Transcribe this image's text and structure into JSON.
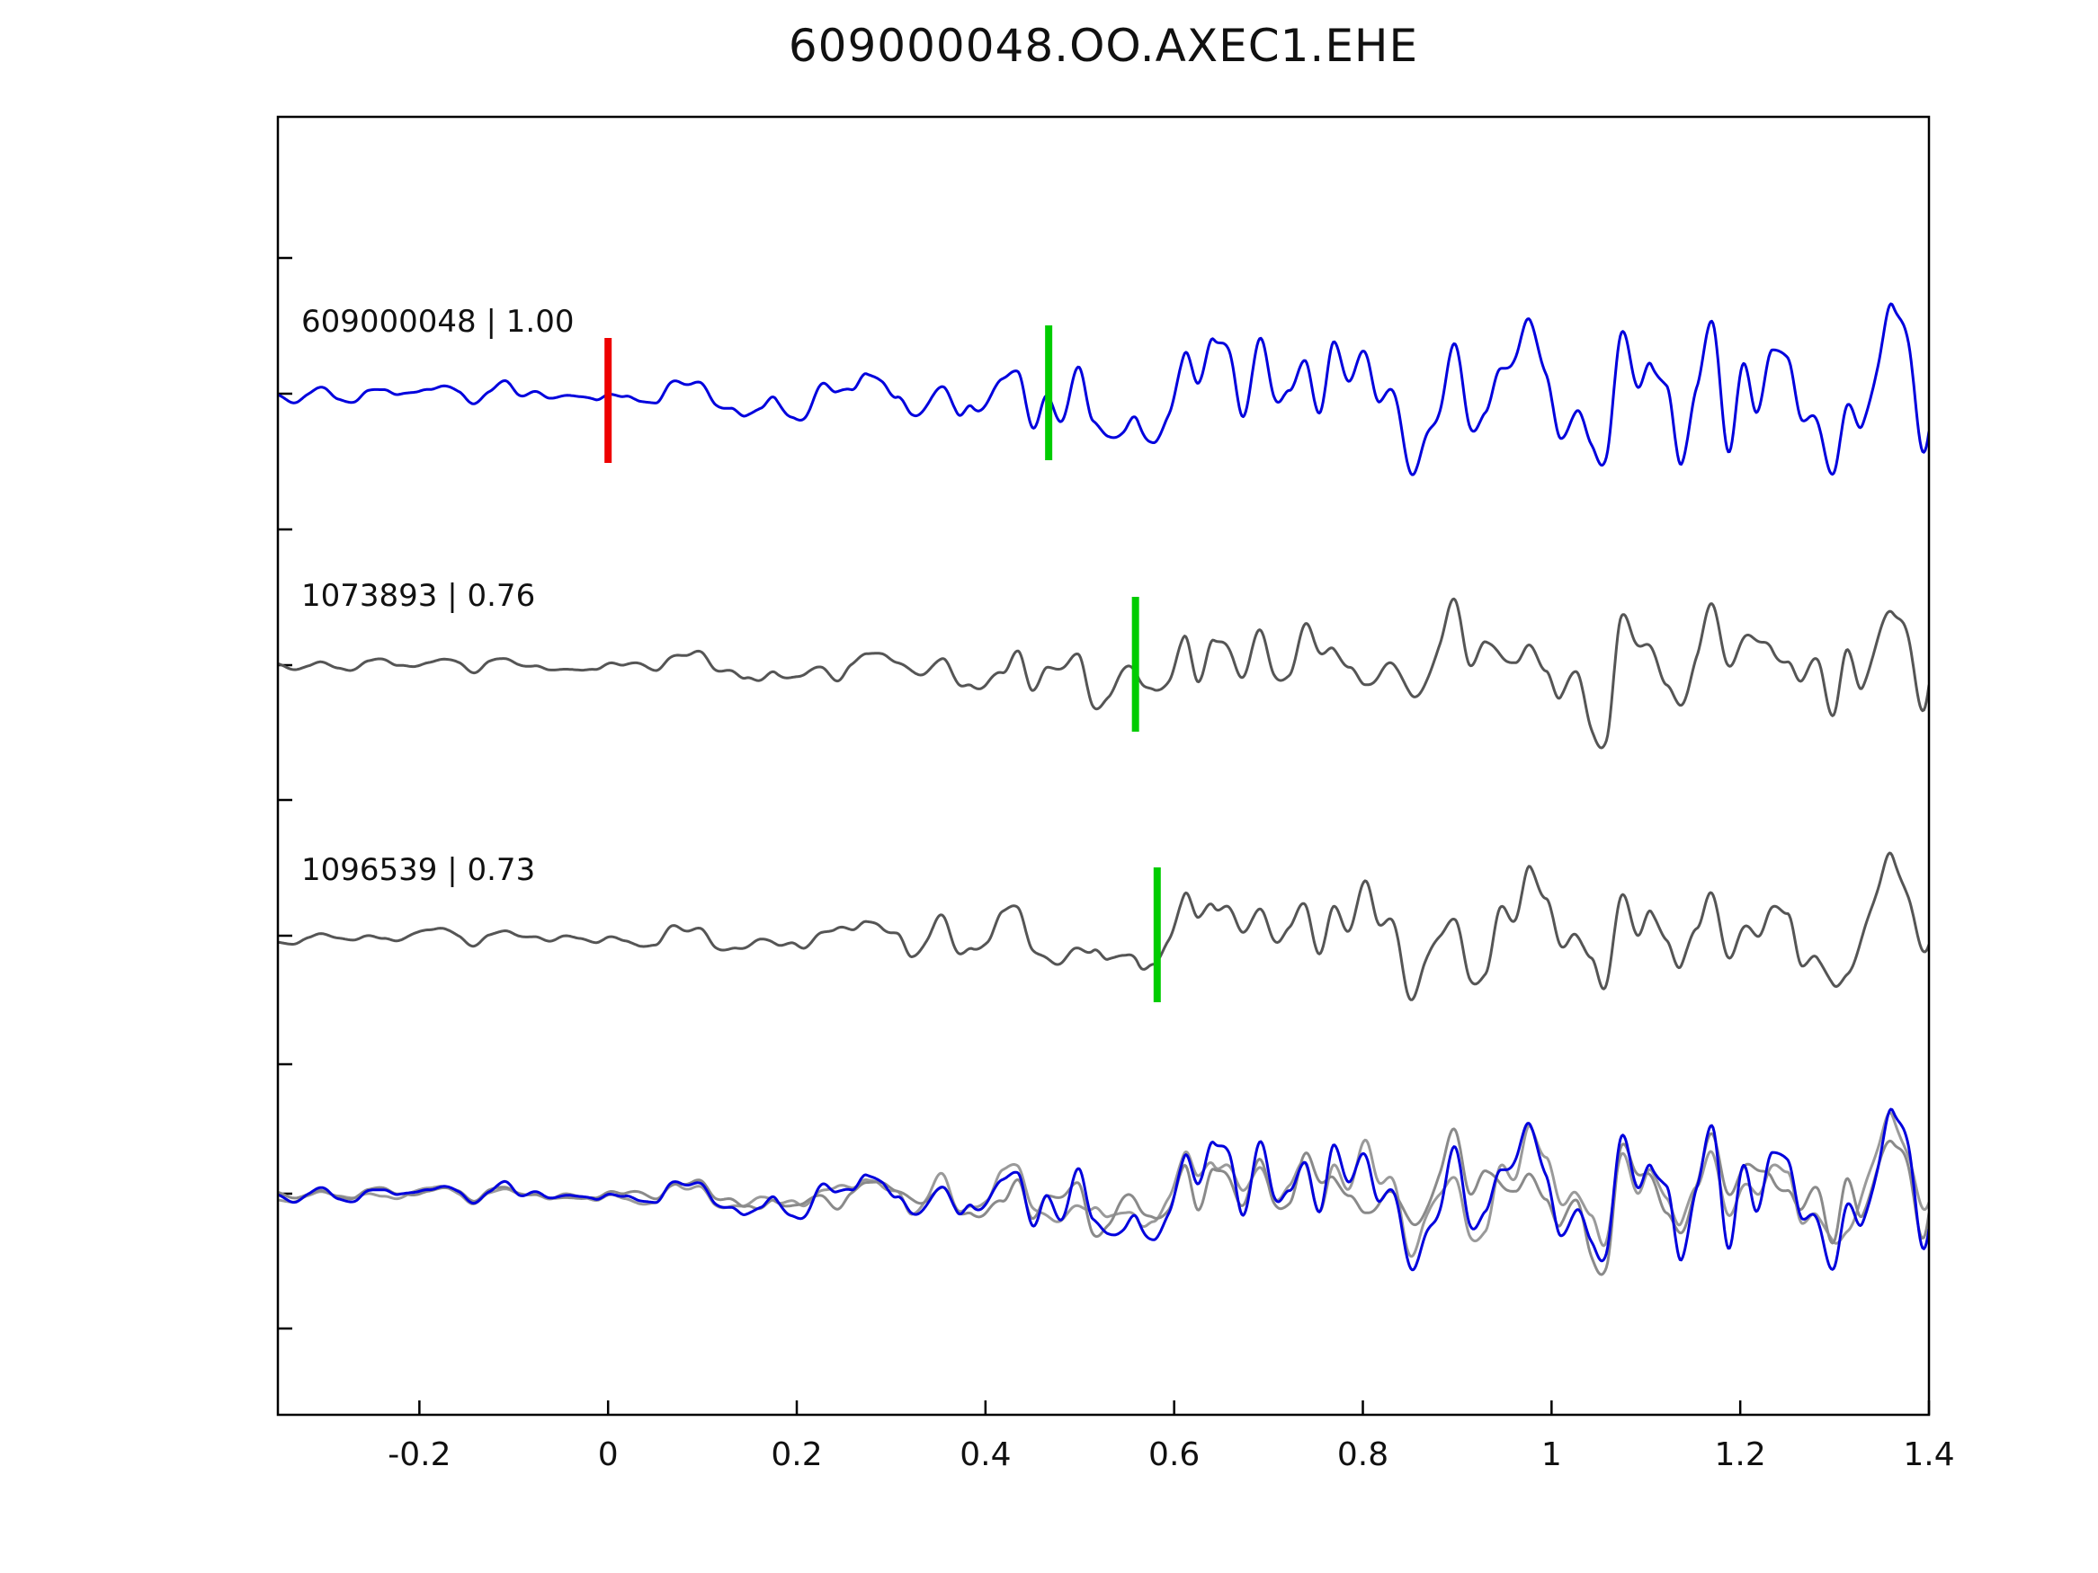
{
  "chart_data": {
    "type": "line",
    "variant": "seismic-waveform-correlation",
    "title": "609000048.OO.AXEC1.EHE",
    "xlabel": "",
    "ylabel": "",
    "xlim": [
      -0.35,
      1.4
    ],
    "grid": false,
    "legend_position": "none",
    "xticks": [
      -0.2,
      0,
      0.2,
      0.4,
      0.6,
      0.8,
      1.0,
      1.2,
      1.4
    ],
    "xtick_labels": [
      "-0.2",
      "0",
      "0.2",
      "0.4",
      "0.6",
      "0.8",
      "1",
      "1.2",
      "1.4"
    ],
    "traces": [
      {
        "id": "609000048",
        "label": "609000048 | 1.00",
        "correlation": "1.00",
        "color": "#0000dd",
        "row": 0,
        "origin_marker": {
          "x": 0.0,
          "color": "#ee0000"
        },
        "pick_marker": {
          "x": 0.467,
          "color": "#00cc00"
        }
      },
      {
        "id": "1073893",
        "label": "1073893 | 0.76",
        "correlation": "0.76",
        "color": "#555555",
        "row": 1,
        "pick_marker": {
          "x": 0.559,
          "color": "#00cc00"
        }
      },
      {
        "id": "1096539",
        "label": "1096539 | 0.73",
        "correlation": "0.73",
        "color": "#555555",
        "row": 2,
        "pick_marker": {
          "x": 0.582,
          "color": "#00cc00"
        }
      }
    ],
    "overlay_row": {
      "row": 3,
      "description": "all three waveforms superimposed",
      "colors": [
        "#9a9a9a",
        "#8a8a8a",
        "#0000dd"
      ]
    },
    "axis_color": "#000000",
    "background": "#ffffff"
  }
}
